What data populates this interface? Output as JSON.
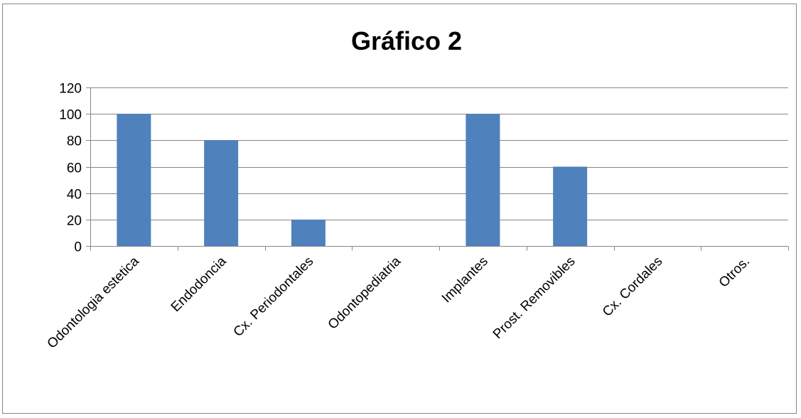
{
  "chart_data": {
    "type": "bar",
    "title": "Gráfico 2",
    "categories": [
      "Odontologia estetica",
      "Endodoncia",
      "Cx. Periodontales",
      "Odontopediatria",
      "Implantes",
      "Prost. Removibles",
      "Cx. Cordales",
      "Otros."
    ],
    "values": [
      100,
      80,
      20,
      0,
      100,
      60,
      0,
      0
    ],
    "ylim": [
      0,
      120
    ],
    "yticks": [
      0,
      20,
      40,
      60,
      80,
      100,
      120
    ],
    "xlabel": "",
    "ylabel": "",
    "grid": true,
    "legend": "none",
    "colors": {
      "bar": "#4f81bd",
      "grid": "#878787",
      "axis": "#878787"
    }
  }
}
